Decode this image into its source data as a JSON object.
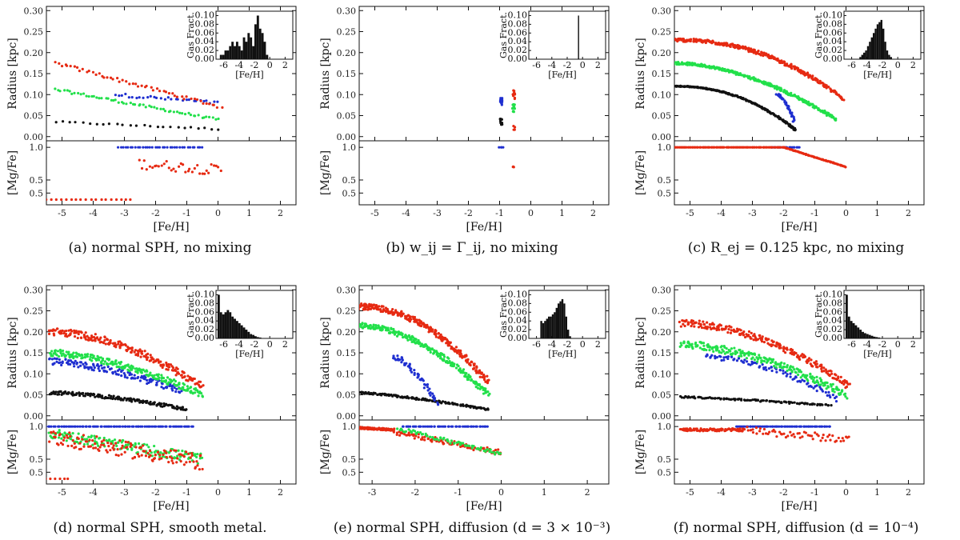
{
  "figure": {
    "captions": [
      "(a) normal SPH, no mixing",
      "(b) w_ij = Γ_ij, no mixing",
      "(c) R_ej = 0.125 kpc, no mixing",
      "(d) normal SPH, smooth metal.",
      "(e) normal SPH, diffusion (d = 3 × 10⁻³)",
      "(f) normal SPH, diffusion (d = 10⁻⁴)"
    ],
    "colors": {
      "black": "#111111",
      "blue": "#1f2fd0",
      "green": "#22e04a",
      "red": "#e62a12",
      "axis": "#111111"
    }
  },
  "chart_data": [
    {
      "type": "scatter",
      "title": "(a) normal SPH, no mixing",
      "xlabel": "[Fe/H]",
      "ylabel_top": "Radius [kpc]",
      "ylabel_bottom": "[Mg/Fe]",
      "xlim": [
        -5.5,
        2.5
      ],
      "ylim_top": [
        -0.01,
        0.31
      ],
      "ylim_bottom": [
        0.12,
        1.1
      ],
      "xticks": [
        "-5",
        "-4",
        "-3",
        "-2",
        "-1",
        "0",
        "1",
        "2"
      ],
      "yticks_top": [
        "0.00",
        "0.05",
        "0.10",
        "0.15",
        "0.20",
        "0.25",
        "0.30"
      ],
      "yticks_bottom": [
        "0.5",
        "0.5",
        "1.0"
      ],
      "series": [
        {
          "name": "black",
          "x0": -5.2,
          "x1": 0.0,
          "r0": 0.035,
          "r1": 0.018,
          "spread": 0.002,
          "n": 25
        },
        {
          "name": "blue",
          "x0": -3.3,
          "x1": 0.0,
          "r0": 0.1,
          "r1": 0.08,
          "spread": 0.004,
          "n": 30
        },
        {
          "name": "green",
          "x0": -5.2,
          "x1": 0.0,
          "r0": 0.112,
          "r1": 0.04,
          "spread": 0.003,
          "n": 60
        },
        {
          "name": "red",
          "x0": -5.2,
          "x1": 0.1,
          "r0": 0.175,
          "r1": 0.07,
          "spread": 0.004,
          "n": 55
        }
      ],
      "mgfe": [
        {
          "name": "blue",
          "x0": -3.2,
          "x1": -0.5,
          "y0": 1.0,
          "y1": 1.0,
          "spread": 0.0,
          "n": 35
        },
        {
          "name": "red",
          "x0": -5.5,
          "x1": -2.8,
          "y0": 0.2,
          "y1": 0.2,
          "spread": 0.0,
          "n": 18
        },
        {
          "name": "red",
          "x0": -2.5,
          "x1": 0.1,
          "y0": 0.75,
          "y1": 0.65,
          "spread": 0.08,
          "n": 35
        }
      ],
      "inset": {
        "ylabel": "Gas Fract.",
        "xlabel": "[Fe/H]",
        "yticks": [
          "0.00",
          "0.02",
          "0.04",
          "0.06",
          "0.08",
          "0.10"
        ],
        "xticks": [
          "-6",
          "-4",
          "-2",
          "0",
          "2"
        ],
        "xlim": [
          -7,
          3
        ],
        "ylim": [
          0,
          0.11
        ],
        "bins_start": -6.5,
        "bin_width": 0.3,
        "values": [
          0.01,
          0.01,
          0.02,
          0.02,
          0.03,
          0.04,
          0.03,
          0.04,
          0.03,
          0.02,
          0.05,
          0.04,
          0.06,
          0.05,
          0.03,
          0.08,
          0.1,
          0.07,
          0.06,
          0.04,
          0.01
        ]
      }
    },
    {
      "type": "scatter",
      "title": "(b) w_ij = Γ_ij, no mixing",
      "xlabel": "[Fe/H]",
      "ylabel_top": "Radius [kpc]",
      "ylabel_bottom": "[Mg/Fe]",
      "xlim": [
        -5.5,
        2.5
      ],
      "ylim_top": [
        -0.01,
        0.31
      ],
      "ylim_bottom": [
        0.12,
        1.1
      ],
      "xticks": [
        "-5",
        "-4",
        "-3",
        "-2",
        "-1",
        "0",
        "1",
        "2"
      ],
      "yticks_top": [
        "0.00",
        "0.05",
        "0.10",
        "0.15",
        "0.20",
        "0.25",
        "0.30"
      ],
      "yticks_bottom": [
        "0.5",
        "0.5",
        "1.0"
      ],
      "series": [
        {
          "name": "black",
          "x0": -0.95,
          "x1": -0.95,
          "r0": 0.03,
          "r1": 0.04,
          "spread": 0.005,
          "n": 12
        },
        {
          "name": "blue",
          "x0": -0.95,
          "x1": -0.95,
          "r0": 0.08,
          "r1": 0.09,
          "spread": 0.006,
          "n": 14
        },
        {
          "name": "green",
          "x0": -0.55,
          "x1": -0.55,
          "r0": 0.06,
          "r1": 0.075,
          "spread": 0.006,
          "n": 12
        },
        {
          "name": "red",
          "x0": -0.55,
          "x1": -0.55,
          "r0": 0.095,
          "r1": 0.105,
          "spread": 0.006,
          "n": 12
        },
        {
          "name": "red",
          "x0": -0.55,
          "x1": -0.55,
          "r0": 0.015,
          "r1": 0.025,
          "spread": 0.003,
          "n": 4
        }
      ],
      "mgfe": [
        {
          "name": "blue",
          "x0": -1.0,
          "x1": -0.9,
          "y0": 1.0,
          "y1": 1.0,
          "spread": 0.0,
          "n": 4
        },
        {
          "name": "red",
          "x0": -0.55,
          "x1": -0.55,
          "y0": 0.7,
          "y1": 0.7,
          "spread": 0.02,
          "n": 3
        }
      ],
      "inset": {
        "ylabel": "Gas Fract.",
        "xlabel": "[Fe/H]",
        "yticks": [
          "0.00",
          "0.02",
          "0.04",
          "0.06",
          "0.08",
          "0.10"
        ],
        "xticks": [
          "-6",
          "-4",
          "-2",
          "0",
          "2"
        ],
        "xlim": [
          -7,
          3
        ],
        "ylim": [
          0,
          0.11
        ],
        "bins_start": -0.6,
        "bin_width": 0.15,
        "values": [
          0.1
        ]
      }
    },
    {
      "type": "scatter",
      "title": "(c) R_ej = 0.125 kpc, no mixing",
      "xlabel": "[Fe/H]",
      "ylabel_top": "Radius [kpc]",
      "ylabel_bottom": "[Mg/Fe]",
      "xlim": [
        -5.5,
        2.5
      ],
      "ylim_top": [
        -0.01,
        0.31
      ],
      "ylim_bottom": [
        0.12,
        1.1
      ],
      "xticks": [
        "-5",
        "-4",
        "-3",
        "-2",
        "-1",
        "0",
        "1",
        "2"
      ],
      "yticks_top": [
        "0.00",
        "0.05",
        "0.10",
        "0.15",
        "0.20",
        "0.25",
        "0.30"
      ],
      "yticks_bottom": [
        "0.5",
        "0.5",
        "1.0"
      ],
      "series": [
        {
          "name": "black",
          "x0": -5.5,
          "x1": -1.6,
          "r0": 0.12,
          "r1": 0.015,
          "spread": 0.001,
          "n": 260,
          "curve": 2.2
        },
        {
          "name": "blue",
          "x0": -2.2,
          "x1": -1.65,
          "r0": 0.1,
          "r1": 0.035,
          "spread": 0.002,
          "n": 40,
          "curve": 1.6
        },
        {
          "name": "green",
          "x0": -5.5,
          "x1": -0.3,
          "r0": 0.175,
          "r1": 0.04,
          "spread": 0.003,
          "n": 300,
          "curve": 1.8
        },
        {
          "name": "red",
          "x0": -5.5,
          "x1": -0.1,
          "r0": 0.23,
          "r1": 0.09,
          "spread": 0.004,
          "n": 320,
          "curve": 2.2
        }
      ],
      "mgfe": [
        {
          "name": "blue",
          "x0": -2.4,
          "x1": -1.5,
          "y0": 1.0,
          "y1": 1.0,
          "spread": 0.0,
          "n": 20
        },
        {
          "name": "red",
          "x0": -5.5,
          "x1": -2.0,
          "y0": 1.0,
          "y1": 1.0,
          "spread": 0.0,
          "n": 120
        },
        {
          "name": "red",
          "x0": -2.0,
          "x1": 0.0,
          "y0": 1.0,
          "y1": 0.7,
          "spread": 0.004,
          "n": 90
        }
      ],
      "inset": {
        "ylabel": "Gas Fract.",
        "xlabel": "[Fe/H]",
        "yticks": [
          "0.00",
          "0.02",
          "0.04",
          "0.06",
          "0.08",
          "0.10"
        ],
        "xticks": [
          "-6",
          "-4",
          "-2",
          "0",
          "2"
        ],
        "xlim": [
          -7,
          3
        ],
        "ylim": [
          0,
          0.11
        ],
        "bins_start": -5.0,
        "bin_width": 0.25,
        "values": [
          0.005,
          0.01,
          0.015,
          0.02,
          0.03,
          0.04,
          0.05,
          0.06,
          0.07,
          0.08,
          0.085,
          0.09,
          0.07,
          0.04,
          0.02,
          0.01,
          0.005
        ]
      }
    },
    {
      "type": "scatter",
      "title": "(d) normal SPH, smooth metal.",
      "xlabel": "[Fe/H]",
      "ylabel_top": "Radius [kpc]",
      "ylabel_bottom": "[Mg/Fe]",
      "xlim": [
        -5.5,
        2.5
      ],
      "ylim_top": [
        -0.01,
        0.31
      ],
      "ylim_bottom": [
        0.12,
        1.1
      ],
      "xticks": [
        "-5",
        "-4",
        "-3",
        "-2",
        "-1",
        "0",
        "1",
        "2"
      ],
      "yticks_top": [
        "0.00",
        "0.05",
        "0.10",
        "0.15",
        "0.20",
        "0.25",
        "0.30"
      ],
      "yticks_bottom": [
        "0.5",
        "0.5",
        "1.0"
      ],
      "series": [
        {
          "name": "black",
          "x0": -5.4,
          "x1": -1.0,
          "r0": 0.055,
          "r1": 0.015,
          "spread": 0.004,
          "n": 160,
          "curve": 1.6
        },
        {
          "name": "blue",
          "x0": -5.4,
          "x1": -1.2,
          "r0": 0.13,
          "r1": 0.06,
          "spread": 0.008,
          "n": 140,
          "curve": 1.5
        },
        {
          "name": "green",
          "x0": -5.4,
          "x1": -0.5,
          "r0": 0.15,
          "r1": 0.05,
          "spread": 0.008,
          "n": 220,
          "curve": 1.6
        },
        {
          "name": "red",
          "x0": -5.4,
          "x1": -0.5,
          "r0": 0.2,
          "r1": 0.07,
          "spread": 0.009,
          "n": 220,
          "curve": 1.8
        }
      ],
      "mgfe": [
        {
          "name": "blue",
          "x0": -5.5,
          "x1": -0.8,
          "y0": 1.0,
          "y1": 1.0,
          "spread": 0.0,
          "n": 80
        },
        {
          "name": "green",
          "x0": -5.4,
          "x1": -0.5,
          "y0": 0.9,
          "y1": 0.5,
          "spread": 0.08,
          "n": 160
        },
        {
          "name": "red",
          "x0": -5.4,
          "x1": -0.5,
          "y0": 0.85,
          "y1": 0.45,
          "spread": 0.12,
          "n": 140
        },
        {
          "name": "red",
          "x0": -5.5,
          "x1": -4.8,
          "y0": 0.2,
          "y1": 0.2,
          "spread": 0.0,
          "n": 6
        }
      ],
      "inset": {
        "ylabel": "Gas Fract.",
        "xlabel": "[Fe/H]",
        "yticks": [
          "0.00",
          "0.02",
          "0.04",
          "0.06",
          "0.08",
          "0.10"
        ],
        "xticks": [
          "-6",
          "-4",
          "-2",
          "0",
          "2"
        ],
        "xlim": [
          -7,
          3
        ],
        "ylim": [
          0,
          0.11
        ],
        "bins_start": -6.8,
        "bin_width": 0.3,
        "values": [
          0.1,
          0.06,
          0.055,
          0.06,
          0.065,
          0.06,
          0.05,
          0.045,
          0.04,
          0.035,
          0.03,
          0.025,
          0.02,
          0.015,
          0.01,
          0.008,
          0.005,
          0.003,
          0.002
        ]
      }
    },
    {
      "type": "scatter",
      "title": "(e) normal SPH, diffusion (d = 3 × 10⁻³)",
      "xlabel": "[Fe/H]",
      "ylabel_top": "Radius [kpc]",
      "ylabel_bottom": "[Mg/Fe]",
      "xlim": [
        -3.3,
        2.5
      ],
      "ylim_top": [
        -0.01,
        0.31
      ],
      "ylim_bottom": [
        0.12,
        1.1
      ],
      "xticks": [
        "-3",
        "-2",
        "-1",
        "0",
        "1",
        "2"
      ],
      "yticks_top": [
        "0.00",
        "0.05",
        "0.10",
        "0.15",
        "0.20",
        "0.25",
        "0.30"
      ],
      "yticks_bottom": [
        "0.5",
        "0.5",
        "1.0"
      ],
      "series": [
        {
          "name": "black",
          "x0": -3.3,
          "x1": -0.3,
          "r0": 0.055,
          "r1": 0.015,
          "spread": 0.002,
          "n": 160,
          "curve": 1.3
        },
        {
          "name": "blue",
          "x0": -2.5,
          "x1": -1.5,
          "r0": 0.14,
          "r1": 0.03,
          "spread": 0.006,
          "n": 60,
          "curve": 1.6
        },
        {
          "name": "green",
          "x0": -3.3,
          "x1": -0.3,
          "r0": 0.215,
          "r1": 0.05,
          "spread": 0.006,
          "n": 260,
          "curve": 1.8
        },
        {
          "name": "red",
          "x0": -3.3,
          "x1": -0.3,
          "r0": 0.26,
          "r1": 0.08,
          "spread": 0.007,
          "n": 280,
          "curve": 2.0
        }
      ],
      "mgfe": [
        {
          "name": "blue",
          "x0": -2.3,
          "x1": -0.3,
          "y0": 1.0,
          "y1": 1.0,
          "spread": 0.0,
          "n": 50
        },
        {
          "name": "red",
          "x0": -3.3,
          "x1": -2.5,
          "y0": 0.98,
          "y1": 0.95,
          "spread": 0.015,
          "n": 100
        },
        {
          "name": "red",
          "x0": -2.5,
          "x1": 0.0,
          "y0": 0.92,
          "y1": 0.6,
          "spread": 0.04,
          "n": 90
        },
        {
          "name": "green",
          "x0": -2.4,
          "x1": 0.0,
          "y0": 0.97,
          "y1": 0.58,
          "spread": 0.03,
          "n": 70
        }
      ],
      "inset": {
        "ylabel": "Gas Fract.",
        "xlabel": "[Fe/H]",
        "yticks": [
          "0.00",
          "0.02",
          "0.04",
          "0.06",
          "0.08",
          "0.10"
        ],
        "xticks": [
          "-6",
          "-4",
          "-2",
          "0",
          "2"
        ],
        "xlim": [
          -7,
          3
        ],
        "ylim": [
          0,
          0.11
        ],
        "bins_start": -5.5,
        "bin_width": 0.25,
        "values": [
          0.04,
          0.035,
          0.04,
          0.045,
          0.05,
          0.05,
          0.055,
          0.06,
          0.07,
          0.08,
          0.085,
          0.09,
          0.08,
          0.05,
          0.02,
          0.005
        ]
      }
    },
    {
      "type": "scatter",
      "title": "(f) normal SPH, diffusion (d = 10⁻⁴)",
      "xlabel": "[Fe/H]",
      "ylabel_top": "Radius [kpc]",
      "ylabel_bottom": "[Mg/Fe]",
      "xlim": [
        -5.5,
        2.5
      ],
      "ylim_top": [
        -0.01,
        0.31
      ],
      "ylim_bottom": [
        0.12,
        1.1
      ],
      "xticks": [
        "-5",
        "-4",
        "-3",
        "-2",
        "-1",
        "0",
        "1",
        "2"
      ],
      "yticks_top": [
        "0.00",
        "0.05",
        "0.10",
        "0.15",
        "0.20",
        "0.25",
        "0.30"
      ],
      "yticks_bottom": [
        "0.5",
        "0.5",
        "1.0"
      ],
      "series": [
        {
          "name": "black",
          "x0": -5.3,
          "x1": -0.5,
          "r0": 0.045,
          "r1": 0.025,
          "spread": 0.002,
          "n": 110,
          "curve": 1.2
        },
        {
          "name": "blue",
          "x0": -4.5,
          "x1": -0.3,
          "r0": 0.14,
          "r1": 0.04,
          "spread": 0.006,
          "n": 90,
          "curve": 1.8
        },
        {
          "name": "green",
          "x0": -5.3,
          "x1": 0.0,
          "r0": 0.17,
          "r1": 0.05,
          "spread": 0.009,
          "n": 240,
          "curve": 1.7
        },
        {
          "name": "red",
          "x0": -5.3,
          "x1": 0.1,
          "r0": 0.22,
          "r1": 0.07,
          "spread": 0.008,
          "n": 240,
          "curve": 1.9
        }
      ],
      "mgfe": [
        {
          "name": "blue",
          "x0": -3.5,
          "x1": -0.5,
          "y0": 1.0,
          "y1": 1.0,
          "spread": 0.0,
          "n": 60
        },
        {
          "name": "red",
          "x0": -5.3,
          "x1": -3.3,
          "y0": 0.95,
          "y1": 0.95,
          "spread": 0.02,
          "n": 80
        },
        {
          "name": "red",
          "x0": -3.3,
          "x1": 0.1,
          "y0": 0.95,
          "y1": 0.8,
          "spread": 0.06,
          "n": 60
        }
      ],
      "inset": {
        "ylabel": "Gas Fract.",
        "xlabel": "[Fe/H]",
        "yticks": [
          "0.00",
          "0.02",
          "0.04",
          "0.06",
          "0.08",
          "0.10"
        ],
        "xticks": [
          "-6",
          "-4",
          "-2",
          "0",
          "2"
        ],
        "xlim": [
          -7,
          3
        ],
        "ylim": [
          0,
          0.11
        ],
        "bins_start": -6.8,
        "bin_width": 0.3,
        "values": [
          0.1,
          0.05,
          0.04,
          0.035,
          0.03,
          0.025,
          0.02,
          0.015,
          0.012,
          0.01,
          0.008,
          0.006,
          0.004,
          0.003,
          0.002,
          0.001
        ]
      }
    }
  ]
}
